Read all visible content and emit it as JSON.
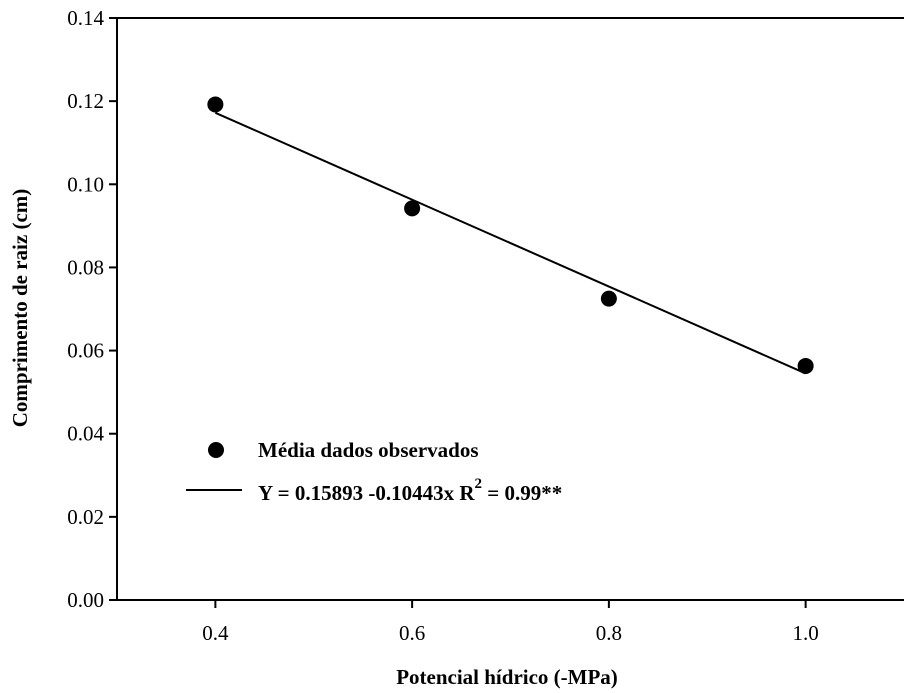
{
  "chart_data": {
    "type": "scatter",
    "xlabel": "Potencial hídrico (-MPa)",
    "ylabel": "Comprimento de raiz (cm)",
    "xlim": [
      0.3,
      1.1
    ],
    "ylim": [
      0.0,
      0.14
    ],
    "x_ticks": [
      0.4,
      0.6,
      0.8,
      1.0
    ],
    "x_tick_labels": [
      "0.4",
      "0.6",
      "0.8",
      "1.0"
    ],
    "y_ticks": [
      0.0,
      0.02,
      0.04,
      0.06,
      0.08,
      0.1,
      0.12,
      0.14
    ],
    "y_tick_labels": [
      "0.00",
      "0.02",
      "0.04",
      "0.06",
      "0.08",
      "0.10",
      "0.12",
      "0.14"
    ],
    "grid": false,
    "legend_position": "bottom-left",
    "series": [
      {
        "name": "Média dados observados",
        "kind": "points",
        "marker": "filled-circle",
        "x": [
          0.4,
          0.6,
          0.8,
          1.0
        ],
        "y": [
          0.1192,
          0.0942,
          0.0725,
          0.0563
        ]
      },
      {
        "kind": "line",
        "x": [
          0.4,
          1.0
        ],
        "y": [
          0.1172,
          0.0545
        ]
      }
    ],
    "legend": {
      "points_label": "Média dados observados",
      "line_label": "Y = 0.15893 -0.10443x  R",
      "line_label_sup": "2",
      "line_label_tail": " = 0.99**"
    }
  }
}
